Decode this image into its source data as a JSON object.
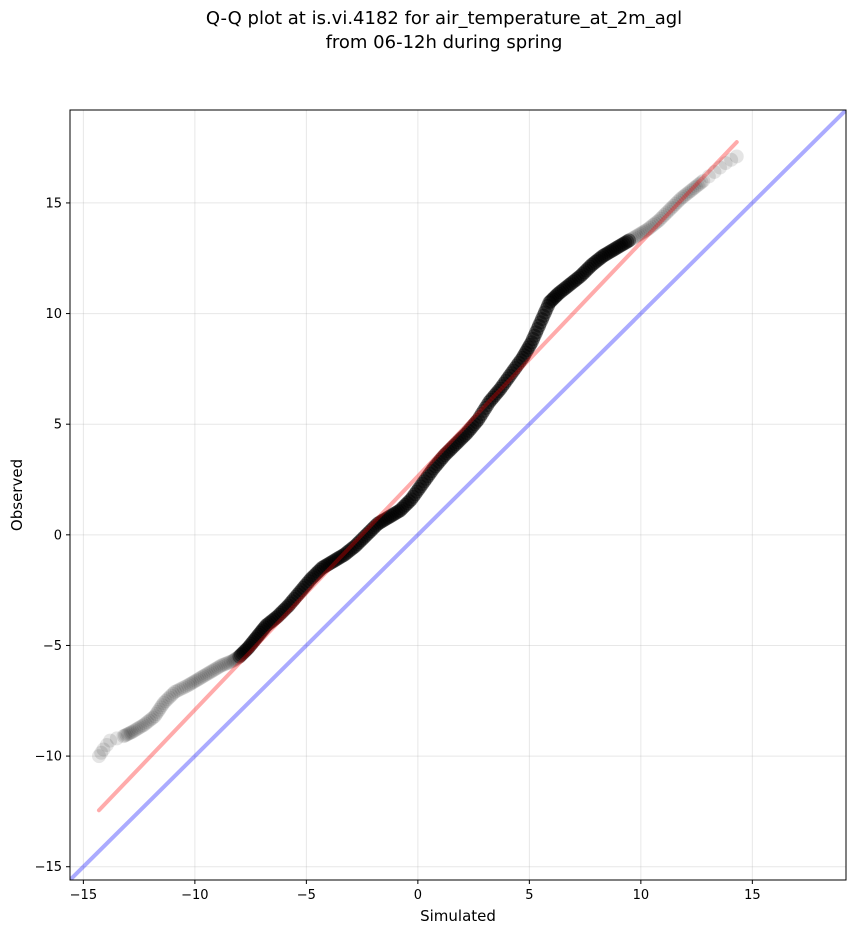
{
  "chart_data": {
    "type": "scatter",
    "title": "Q-Q plot at is.vi.4182 for air_temperature_at_2m_agl",
    "subtitle": "from 06-12h during spring",
    "xlabel": "Simulated",
    "ylabel": "Observed",
    "xlim": [
      -15.6,
      19.2
    ],
    "ylim": [
      -15.6,
      19.2
    ],
    "xticks": [
      -15,
      -10,
      -5,
      0,
      5,
      10,
      15
    ],
    "yticks": [
      -15,
      -10,
      -5,
      0,
      5,
      10,
      15
    ],
    "xtick_labels": [
      "−15",
      "−10",
      "−5",
      "0",
      "5",
      "10",
      "15"
    ],
    "ytick_labels": [
      "−15",
      "−10",
      "−5",
      "0",
      "5",
      "10",
      "15"
    ],
    "grid": true,
    "legend": "none",
    "quantile_points": {
      "x": [
        -14.3,
        -14.1,
        -13.8,
        -13.2,
        -12.8,
        -12.3,
        -11.8,
        -11.4,
        -10.9,
        -10.3,
        -9.8,
        -9.3,
        -8.8,
        -8.3,
        -8.0,
        -7.6,
        -7.2,
        -6.8,
        -6.3,
        -5.8,
        -5.3,
        -4.8,
        -4.3,
        -3.8,
        -3.3,
        -2.8,
        -2.3,
        -1.8,
        -1.3,
        -0.8,
        -0.3,
        0.2,
        0.7,
        1.2,
        1.7,
        2.2,
        2.7,
        3.2,
        3.7,
        4.2,
        4.7,
        5.1,
        5.5,
        5.9,
        6.3,
        6.8,
        7.3,
        7.8,
        8.3,
        8.8,
        9.3,
        9.8,
        10.3,
        10.8,
        11.3,
        11.8,
        12.3,
        12.8,
        13.3,
        13.8,
        14.3
      ],
      "y": [
        -10.0,
        -9.7,
        -9.3,
        -9.1,
        -8.9,
        -8.6,
        -8.2,
        -7.6,
        -7.1,
        -6.8,
        -6.5,
        -6.2,
        -5.9,
        -5.7,
        -5.5,
        -5.1,
        -4.6,
        -4.1,
        -3.7,
        -3.2,
        -2.6,
        -2.0,
        -1.5,
        -1.2,
        -0.9,
        -0.5,
        0.0,
        0.5,
        0.8,
        1.1,
        1.6,
        2.3,
        3.0,
        3.6,
        4.1,
        4.6,
        5.2,
        6.0,
        6.6,
        7.3,
        8.0,
        8.7,
        9.6,
        10.5,
        10.9,
        11.3,
        11.7,
        12.2,
        12.6,
        12.9,
        13.2,
        13.5,
        13.8,
        14.2,
        14.7,
        15.2,
        15.6,
        16.0,
        16.4,
        16.8,
        17.1
      ],
      "color": "#000000"
    },
    "fit_line": {
      "x": [
        -14.3,
        14.3
      ],
      "y": [
        -12.45,
        17.75
      ],
      "color": "#ff0000"
    },
    "identity_line": {
      "x": [
        -15.6,
        19.2
      ],
      "y": [
        -15.6,
        19.2
      ],
      "color": "#0000ff"
    }
  }
}
